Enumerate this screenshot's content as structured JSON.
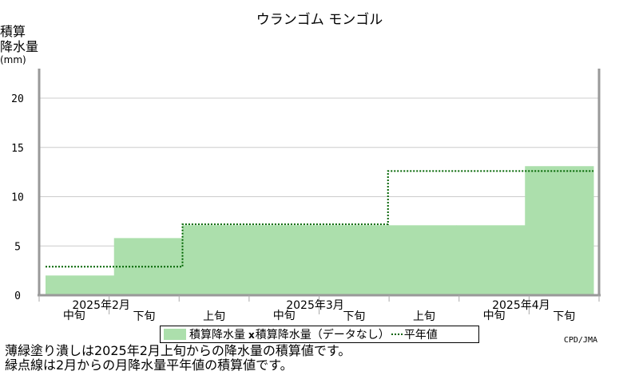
{
  "title": "ウランゴム モンゴル",
  "ylabel_lines": [
    "積算",
    "降水量"
  ],
  "ylabel_unit": "(mm)",
  "chart_data": {
    "type": "bar",
    "categories": [
      "2月中旬",
      "2月下旬",
      "3月上旬",
      "3月中旬",
      "3月下旬",
      "4月上旬",
      "4月中旬",
      "4月下旬"
    ],
    "series": [
      {
        "name": "積算降水量",
        "type": "area-step",
        "values": [
          2.0,
          5.8,
          7.1,
          7.1,
          7.1,
          7.1,
          7.1,
          13.1
        ],
        "color": "#acdfac"
      },
      {
        "name": "平年値",
        "type": "step-line-dotted",
        "values": [
          2.9,
          2.9,
          7.2,
          7.2,
          7.2,
          12.6,
          12.6,
          12.6
        ],
        "color": "#006400"
      }
    ],
    "ylim": [
      0,
      23
    ],
    "yticks": [
      0,
      5,
      10,
      15,
      20
    ],
    "grid": true,
    "x_tick_labels": [
      "中旬",
      "下旬",
      "上旬",
      "中旬",
      "下旬",
      "上旬",
      "中旬",
      "下旬"
    ],
    "month_labels": [
      "2025年2月",
      "2025年3月",
      "2025年4月"
    ]
  },
  "legend": {
    "item1": "積算降水量",
    "mark": "x",
    "item2": "積算降水量（データなし）",
    "item3": "平年値"
  },
  "credit": "CPD/JMA",
  "notes": [
    "薄緑塗り潰しは2025年2月上旬からの降水量の積算値です。",
    "緑点線は2月からの月降水量平年値の積算値です。"
  ]
}
